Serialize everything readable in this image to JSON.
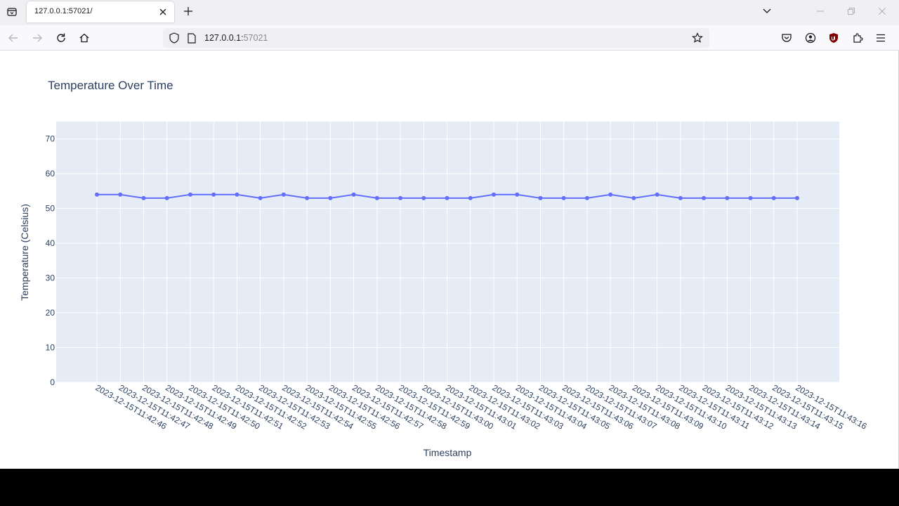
{
  "browser": {
    "tab_title": "127.0.0.1:57021/",
    "url_host": "127.0.0.1:",
    "url_port": "57021"
  },
  "chart_data": {
    "type": "line",
    "title": "Temperature Over Time",
    "xlabel": "Timestamp",
    "ylabel": "Temperature (Celsius)",
    "ylim": [
      0,
      75
    ],
    "yticks": [
      0,
      10,
      20,
      30,
      40,
      50,
      60,
      70
    ],
    "grid": true,
    "line_color": "#636efa",
    "plot_bgcolor": "#e5ecf6",
    "x": [
      "2023-12-15T11:42:46",
      "2023-12-15T11:42:47",
      "2023-12-15T11:42:48",
      "2023-12-15T11:42:49",
      "2023-12-15T11:42:50",
      "2023-12-15T11:42:51",
      "2023-12-15T11:42:52",
      "2023-12-15T11:42:53",
      "2023-12-15T11:42:54",
      "2023-12-15T11:42:55",
      "2023-12-15T11:42:56",
      "2023-12-15T11:42:57",
      "2023-12-15T11:42:58",
      "2023-12-15T11:42:59",
      "2023-12-15T11:43:00",
      "2023-12-15T11:43:01",
      "2023-12-15T11:43:02",
      "2023-12-15T11:43:03",
      "2023-12-15T11:43:04",
      "2023-12-15T11:43:05",
      "2023-12-15T11:43:06",
      "2023-12-15T11:43:07",
      "2023-12-15T11:43:08",
      "2023-12-15T11:43:09",
      "2023-12-15T11:43:10",
      "2023-12-15T11:43:11",
      "2023-12-15T11:43:12",
      "2023-12-15T11:43:13",
      "2023-12-15T11:43:14",
      "2023-12-15T11:43:15",
      "2023-12-15T11:43:16"
    ],
    "series": [
      {
        "values": [
          54,
          54,
          53,
          53,
          54,
          54,
          54,
          53,
          54,
          53,
          53,
          54,
          53,
          53,
          53,
          53,
          53,
          54,
          54,
          53,
          53,
          53,
          54,
          53,
          54,
          53,
          53,
          53,
          53,
          53,
          53
        ]
      }
    ]
  }
}
